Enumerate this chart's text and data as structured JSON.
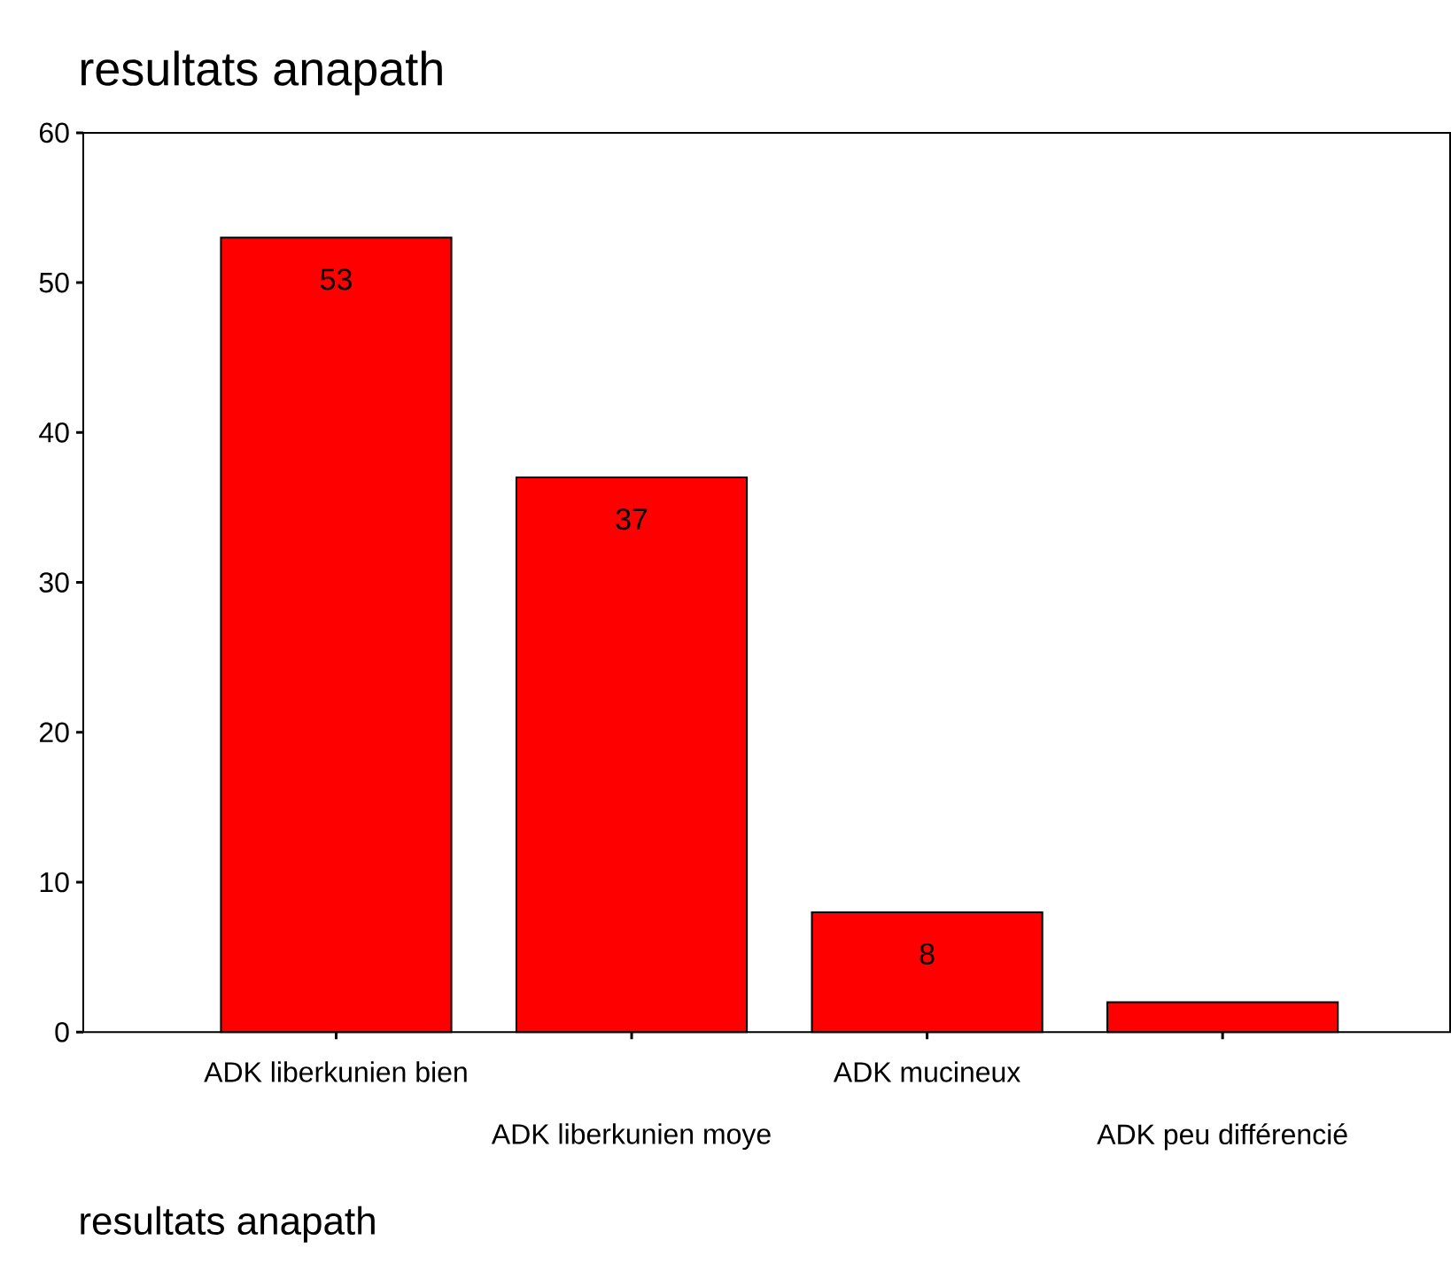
{
  "chart_data": {
    "type": "bar",
    "title": "resultats anapath",
    "xlabel": "resultats anapath",
    "categories": [
      "ADK liberkunien bien",
      "ADK liberkunien moye",
      "ADK mucineux",
      "ADK peu différencié"
    ],
    "values": [
      53,
      37,
      8,
      2
    ],
    "value_labels": [
      "53",
      "37",
      "8",
      null
    ],
    "color": "#ff0000",
    "ylim": [
      0,
      60
    ],
    "yticks": [
      0,
      10,
      20,
      30,
      40,
      50,
      60
    ],
    "grid": false
  }
}
